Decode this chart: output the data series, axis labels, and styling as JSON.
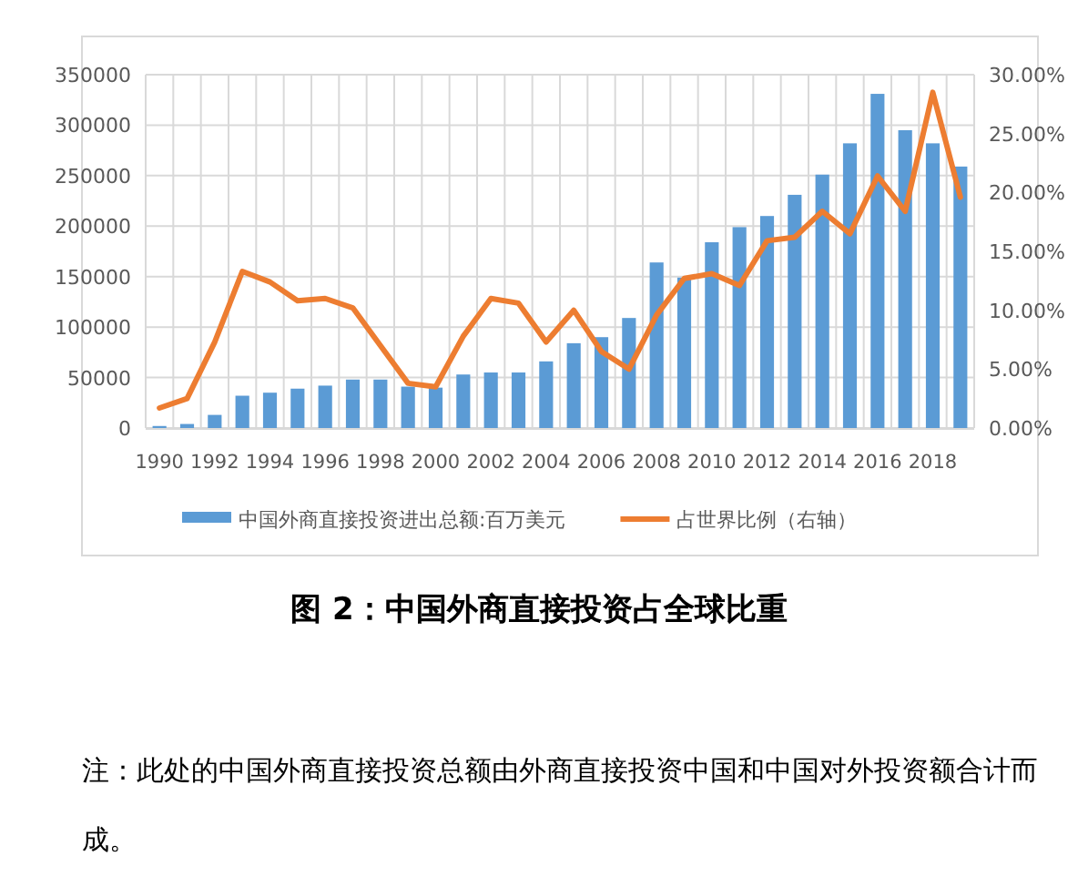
{
  "chart_data": {
    "type": "bar",
    "title": "图 2：中国外商直接投资占全球比重",
    "annotations": [
      "注：此处的中国外商直接投资总额由外商直接投资中国和中国对外投资额合计而成。"
    ],
    "categories": [
      "1990",
      null,
      "1992",
      null,
      "1994",
      null,
      "1996",
      null,
      "1998",
      null,
      "2000",
      null,
      "2002",
      null,
      "2004",
      null,
      "2006",
      null,
      "2008",
      null,
      "2010",
      null,
      "2012",
      null,
      "2014",
      null,
      "2016",
      null,
      "2018",
      null
    ],
    "series": [
      {
        "name": "中国外商直接投资进出总额:百万美元",
        "color": "#5b9bd5",
        "values": [
          2000,
          4000,
          13000,
          32000,
          35000,
          39000,
          42000,
          48000,
          48000,
          41000,
          40000,
          53000,
          55000,
          55000,
          66000,
          84000,
          90000,
          109000,
          164000,
          149000,
          184000,
          199000,
          210000,
          231000,
          251000,
          282000,
          331000,
          295000,
          282000,
          259000
        ]
      },
      {
        "name": "占世界比例（右轴）",
        "type": "line",
        "axis": "y2",
        "color": "#ed7d31",
        "values": [
          1.7,
          2.5,
          7.3,
          13.3,
          12.4,
          10.8,
          11.0,
          10.2,
          7.0,
          3.8,
          3.5,
          7.8,
          11.0,
          10.6,
          7.3,
          10.0,
          6.5,
          5.0,
          9.6,
          12.7,
          13.1,
          12.1,
          15.9,
          16.2,
          18.4,
          16.5,
          21.4,
          18.4,
          28.5,
          19.6
        ]
      }
    ],
    "ylim": [
      0,
      350000
    ],
    "yticks": [
      0,
      50000,
      100000,
      150000,
      200000,
      250000,
      300000,
      350000
    ],
    "y2lim": [
      0,
      30
    ],
    "y2ticks": [
      {
        "value": 0,
        "label": "0.00%"
      },
      {
        "value": 5,
        "label": "5.00%"
      },
      {
        "value": 10,
        "label": "10.00%"
      },
      {
        "value": 15,
        "label": "15.00%"
      },
      {
        "value": 20,
        "label": "20.00%"
      },
      {
        "value": 25,
        "label": "25.00%"
      },
      {
        "value": 30,
        "label": "30.00%"
      }
    ],
    "grid": true,
    "legend": "bottom"
  }
}
